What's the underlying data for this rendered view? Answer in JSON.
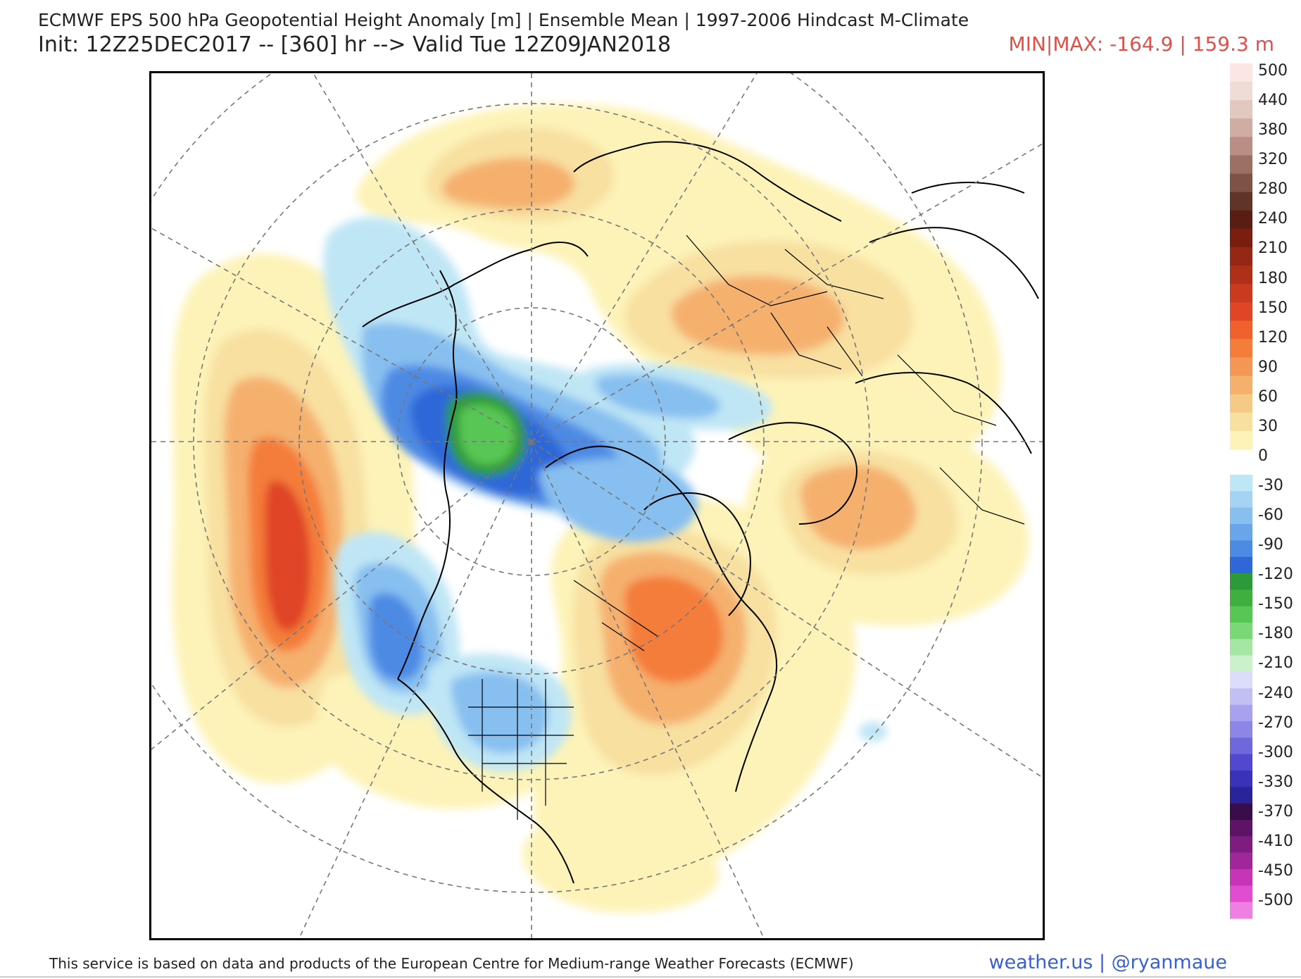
{
  "header": {
    "title": "ECMWF EPS 500 hPa Geopotential Height Anomaly [m] | Ensemble Mean | 1997-2006 Hindcast M-Climate",
    "init": "Init: 12Z25DEC2017 -- [360] hr --> Valid Tue 12Z09JAN2018",
    "minmax": "MIN|MAX: -164.9 | 159.3 m"
  },
  "colorbar": {
    "labels": [
      "500",
      "440",
      "380",
      "320",
      "280",
      "240",
      "210",
      "180",
      "150",
      "120",
      "90",
      "60",
      "30",
      "0",
      "-30",
      "-60",
      "-90",
      "-120",
      "-150",
      "-180",
      "-210",
      "-240",
      "-270",
      "-300",
      "-330",
      "-370",
      "-410",
      "-450",
      "-500"
    ],
    "positive_colors": [
      "#fbe6e4",
      "#efdcd6",
      "#e2c8be",
      "#d0ada3",
      "#b88e85",
      "#9c7065",
      "#7f5248",
      "#603428",
      "#5a1d14",
      "#7a1e10",
      "#962714",
      "#b02f18",
      "#c93a1e",
      "#df4526",
      "#f0612e",
      "#f47d3a",
      "#f49656",
      "#f5b06e",
      "#f6c987",
      "#f8e0a1",
      "#fdf3b8"
    ],
    "negative_colors": [
      "#bfe6f5",
      "#a4d3f3",
      "#87bff0",
      "#6aa5eb",
      "#4d8ae4",
      "#2f67d8",
      "#2d9a3a",
      "#3fb040",
      "#58c655",
      "#7ad877",
      "#a6e6a3",
      "#cdf0cc",
      "#dcdcfb",
      "#c2bff5",
      "#a7a2ee",
      "#8c86e6",
      "#6f67dc",
      "#5248cf",
      "#3a32b8",
      "#2a2399",
      "#3b0c4a",
      "#5e1466",
      "#7e1c80",
      "#a02799",
      "#c535b6",
      "#e04dce",
      "#ef7fe0"
    ]
  },
  "footer": {
    "note": "This service is based on data and products of the European Centre for Medium-range Weather Forecasts (ECMWF)",
    "credit": "weather.us | @ryanmaue"
  }
}
